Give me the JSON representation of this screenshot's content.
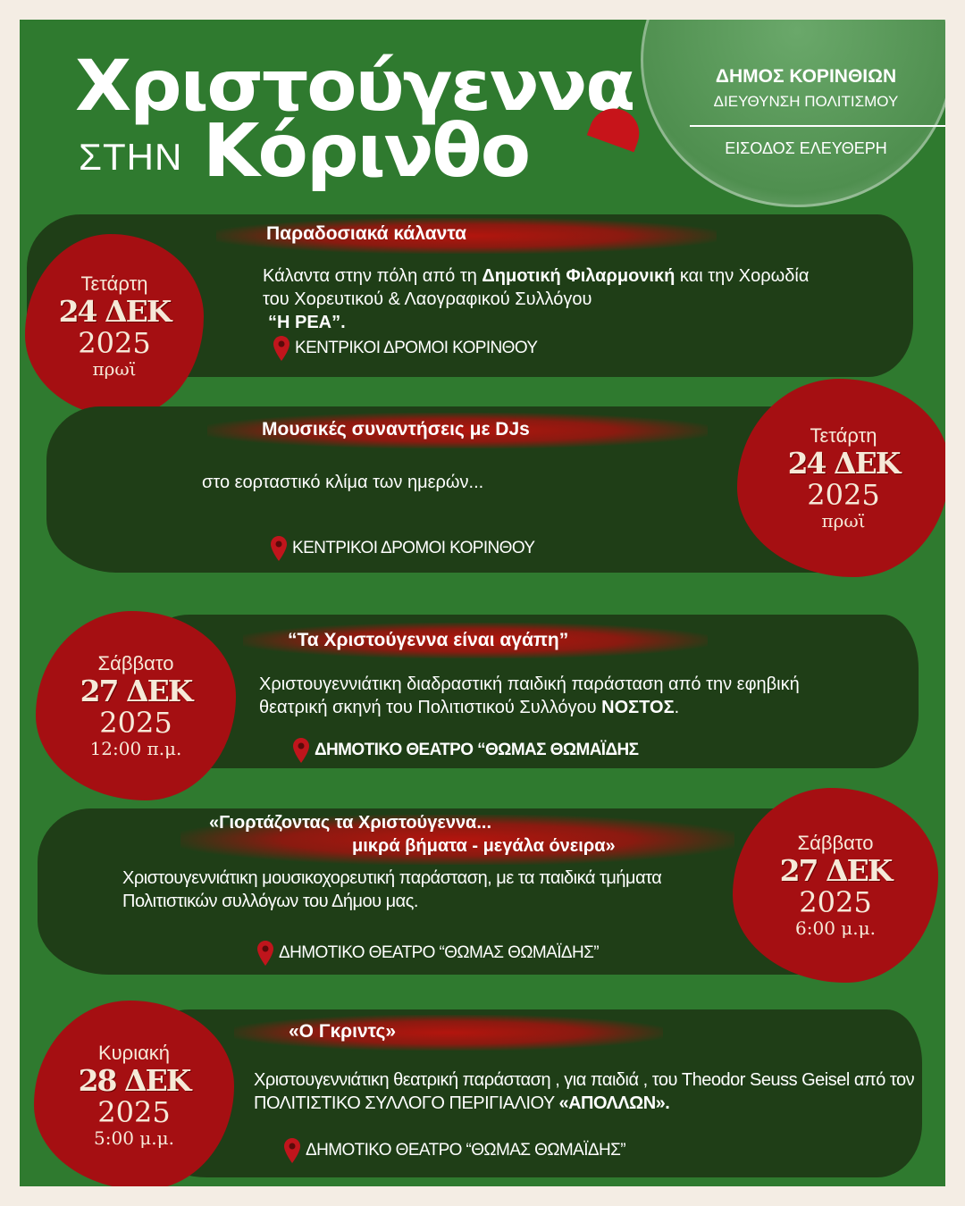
{
  "header": {
    "title_line1": "Χριστούγεννα",
    "title_small": "ΣΤΗΝ",
    "title_line2": "Κόρινθο",
    "org": "ΔΗΜΟΣ ΚΟΡΙΝΘΙΩΝ",
    "dept": "ΔΙΕΥΘΥΝΣΗ ΠΟΛΙΤΙΣΜΟΥ",
    "entry": "ΕΙΣΟΔΟΣ ΕΛΕΥΘΕΡΗ"
  },
  "colors": {
    "background": "#f4ede4",
    "panel": "#2f7a2f",
    "card": "#1f3e17",
    "accent_red": "#a50f12"
  },
  "events": [
    {
      "day": "Τετάρτη",
      "date": "24 ΔΕΚ",
      "year": "2025",
      "time": "πρωϊ",
      "title": "Παραδοσιακά κάλαντα",
      "desc": [
        {
          "t": "Κάλαντα στην πόλη από τη ",
          "b": false
        },
        {
          "t": "Δημοτική Φιλαρμονική",
          "b": true
        },
        {
          "t": " και την Χορωδία του Χορευτικού & Λαογραφικού Συλλόγου ",
          "b": false
        },
        {
          "t": "“Η ΡΕΑ”.",
          "b": true
        }
      ],
      "location": "ΚΕΝΤΡΙΚΟΙ ΔΡΟΜΟΙ ΚΟΡΙΝΘΟΥ"
    },
    {
      "day": "Τετάρτη",
      "date": "24 ΔΕΚ",
      "year": "2025",
      "time": "πρωϊ",
      "title": "Μουσικές συναντήσεις με DJs",
      "desc": [
        {
          "t": "στο εορταστικό κλίμα των ημερών...",
          "b": false
        }
      ],
      "location": "ΚΕΝΤΡΙΚΟΙ ΔΡΟΜΟΙ ΚΟΡΙΝΘΟΥ"
    },
    {
      "day": "Σάββατο",
      "date": "27 ΔΕΚ",
      "year": "2025",
      "time": "12:00 π.μ.",
      "title": "“Τα Χριστούγεννα είναι αγάπη”",
      "desc": [
        {
          "t": "Χριστουγεννιάτικη διαδραστική παιδική παράσταση από την εφηβική θεατρική σκηνή του Πολιτιστικού Συλλόγου ",
          "b": false
        },
        {
          "t": "ΝΟΣΤΟΣ",
          "b": true
        },
        {
          "t": ".",
          "b": false
        }
      ],
      "location": "ΔΗΜΟΤΙΚΟ ΘΕΑΤΡΟ “ΘΩΜΑΣ ΘΩΜΑΪΔΗΣ"
    },
    {
      "day": "Σάββατο",
      "date": "27 ΔΕΚ",
      "year": "2025",
      "time": "6:00 μ.μ.",
      "title": "«Γιορτάζοντας τα Χριστούγεννα...",
      "title2": "μικρά βήματα - μεγάλα όνειρα»",
      "desc": [
        {
          "t": "Χριστουγεννιάτικη μουσικοχορευτική παράσταση,  με τα παιδικά τμήματα Πολιτιστικών συλλόγων του Δήμου μας.",
          "b": false
        }
      ],
      "location": "ΔΗΜΟΤΙΚΟ ΘΕΑΤΡΟ “ΘΩΜΑΣ ΘΩΜΑΪΔΗΣ”"
    },
    {
      "day": "Κυριακή",
      "date": "28 ΔΕΚ",
      "year": "2025",
      "time": "5:00 μ.μ.",
      "title": "«Ο Γκριντς»",
      "desc": [
        {
          "t": "Χριστουγεννιάτικη θεατρική παράσταση , για παιδιά , του Theodor Seuss Geisel από τον ΠΟΛΙΤΙΣΤΙΚΟ ΣΥΛΛΟΓΟ ΠΕΡΙΓΙΑΛΙΟΥ ",
          "b": false
        },
        {
          "t": "«ΑΠΟΛΛΩΝ».",
          "b": true
        }
      ],
      "location": "ΔΗΜΟΤΙΚΟ ΘΕΑΤΡΟ “ΘΩΜΑΣ ΘΩΜΑΪΔΗΣ”"
    }
  ]
}
